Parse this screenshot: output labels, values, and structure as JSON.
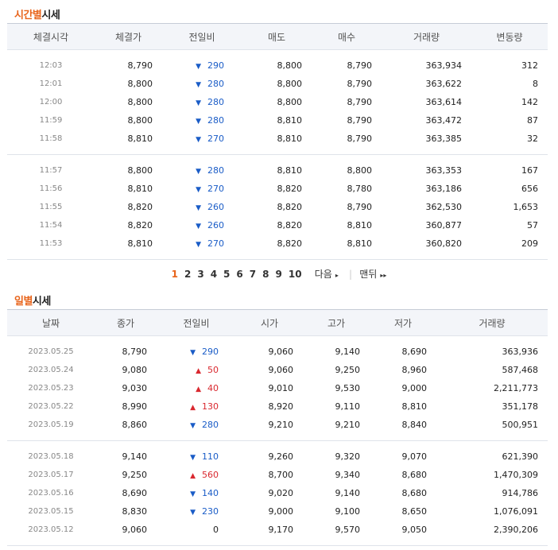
{
  "time_section": {
    "title_hl": "시간별",
    "title_rest": "시세",
    "headers": [
      "체결시각",
      "체결가",
      "전일비",
      "매도",
      "매수",
      "거래량",
      "변동량"
    ],
    "group1": [
      {
        "time": "12:03",
        "price": "8,790",
        "dir": "down",
        "arrow": "▼",
        "chg": "290",
        "ask": "8,800",
        "bid": "8,790",
        "vol": "363,934",
        "delta": "312"
      },
      {
        "time": "12:01",
        "price": "8,800",
        "dir": "down",
        "arrow": "▼",
        "chg": "280",
        "ask": "8,800",
        "bid": "8,790",
        "vol": "363,622",
        "delta": "8"
      },
      {
        "time": "12:00",
        "price": "8,800",
        "dir": "down",
        "arrow": "▼",
        "chg": "280",
        "ask": "8,800",
        "bid": "8,790",
        "vol": "363,614",
        "delta": "142"
      },
      {
        "time": "11:59",
        "price": "8,800",
        "dir": "down",
        "arrow": "▼",
        "chg": "280",
        "ask": "8,810",
        "bid": "8,790",
        "vol": "363,472",
        "delta": "87"
      },
      {
        "time": "11:58",
        "price": "8,810",
        "dir": "down",
        "arrow": "▼",
        "chg": "270",
        "ask": "8,810",
        "bid": "8,790",
        "vol": "363,385",
        "delta": "32"
      }
    ],
    "group2": [
      {
        "time": "11:57",
        "price": "8,800",
        "dir": "down",
        "arrow": "▼",
        "chg": "280",
        "ask": "8,810",
        "bid": "8,800",
        "vol": "363,353",
        "delta": "167"
      },
      {
        "time": "11:56",
        "price": "8,810",
        "dir": "down",
        "arrow": "▼",
        "chg": "270",
        "ask": "8,820",
        "bid": "8,780",
        "vol": "363,186",
        "delta": "656"
      },
      {
        "time": "11:55",
        "price": "8,820",
        "dir": "down",
        "arrow": "▼",
        "chg": "260",
        "ask": "8,820",
        "bid": "8,790",
        "vol": "362,530",
        "delta": "1,653"
      },
      {
        "time": "11:54",
        "price": "8,820",
        "dir": "down",
        "arrow": "▼",
        "chg": "260",
        "ask": "8,820",
        "bid": "8,810",
        "vol": "360,877",
        "delta": "57"
      },
      {
        "time": "11:53",
        "price": "8,810",
        "dir": "down",
        "arrow": "▼",
        "chg": "270",
        "ask": "8,820",
        "bid": "8,810",
        "vol": "360,820",
        "delta": "209"
      }
    ]
  },
  "pager": {
    "pages": [
      "1",
      "2",
      "3",
      "4",
      "5",
      "6",
      "7",
      "8",
      "9",
      "10"
    ],
    "current": "1",
    "next_label": "다음",
    "last_label": "맨뒤",
    "next_icon": "▸",
    "last_icon": "▸▸"
  },
  "daily_section": {
    "title_hl": "일별",
    "title_rest": "시세",
    "headers": [
      "날짜",
      "종가",
      "전일비",
      "시가",
      "고가",
      "저가",
      "거래량"
    ],
    "group1": [
      {
        "date": "2023.05.25",
        "close": "8,790",
        "dir": "down",
        "arrow": "▼",
        "chg": "290",
        "open": "9,060",
        "high": "9,140",
        "low": "8,690",
        "vol": "363,936"
      },
      {
        "date": "2023.05.24",
        "close": "9,080",
        "dir": "up",
        "arrow": "▲",
        "chg": "50",
        "open": "9,060",
        "high": "9,250",
        "low": "8,960",
        "vol": "587,468"
      },
      {
        "date": "2023.05.23",
        "close": "9,030",
        "dir": "up",
        "arrow": "▲",
        "chg": "40",
        "open": "9,010",
        "high": "9,530",
        "low": "9,000",
        "vol": "2,211,773"
      },
      {
        "date": "2023.05.22",
        "close": "8,990",
        "dir": "up",
        "arrow": "▲",
        "chg": "130",
        "open": "8,920",
        "high": "9,110",
        "low": "8,810",
        "vol": "351,178"
      },
      {
        "date": "2023.05.19",
        "close": "8,860",
        "dir": "down",
        "arrow": "▼",
        "chg": "280",
        "open": "9,210",
        "high": "9,210",
        "low": "8,840",
        "vol": "500,951"
      }
    ],
    "group2": [
      {
        "date": "2023.05.18",
        "close": "9,140",
        "dir": "down",
        "arrow": "▼",
        "chg": "110",
        "open": "9,260",
        "high": "9,320",
        "low": "9,070",
        "vol": "621,390"
      },
      {
        "date": "2023.05.17",
        "close": "9,250",
        "dir": "up",
        "arrow": "▲",
        "chg": "560",
        "open": "8,700",
        "high": "9,340",
        "low": "8,680",
        "vol": "1,470,309"
      },
      {
        "date": "2023.05.16",
        "close": "8,690",
        "dir": "down",
        "arrow": "▼",
        "chg": "140",
        "open": "9,020",
        "high": "9,140",
        "low": "8,680",
        "vol": "914,786"
      },
      {
        "date": "2023.05.15",
        "close": "8,830",
        "dir": "down",
        "arrow": "▼",
        "chg": "230",
        "open": "9,000",
        "high": "9,100",
        "low": "8,650",
        "vol": "1,076,091"
      },
      {
        "date": "2023.05.12",
        "close": "9,060",
        "dir": "same",
        "arrow": "",
        "chg": "0",
        "open": "9,170",
        "high": "9,570",
        "low": "9,050",
        "vol": "2,390,206"
      }
    ]
  },
  "colors": {
    "accent": "#e8641b",
    "down": "#1a5cc7",
    "up": "#d9282f"
  }
}
